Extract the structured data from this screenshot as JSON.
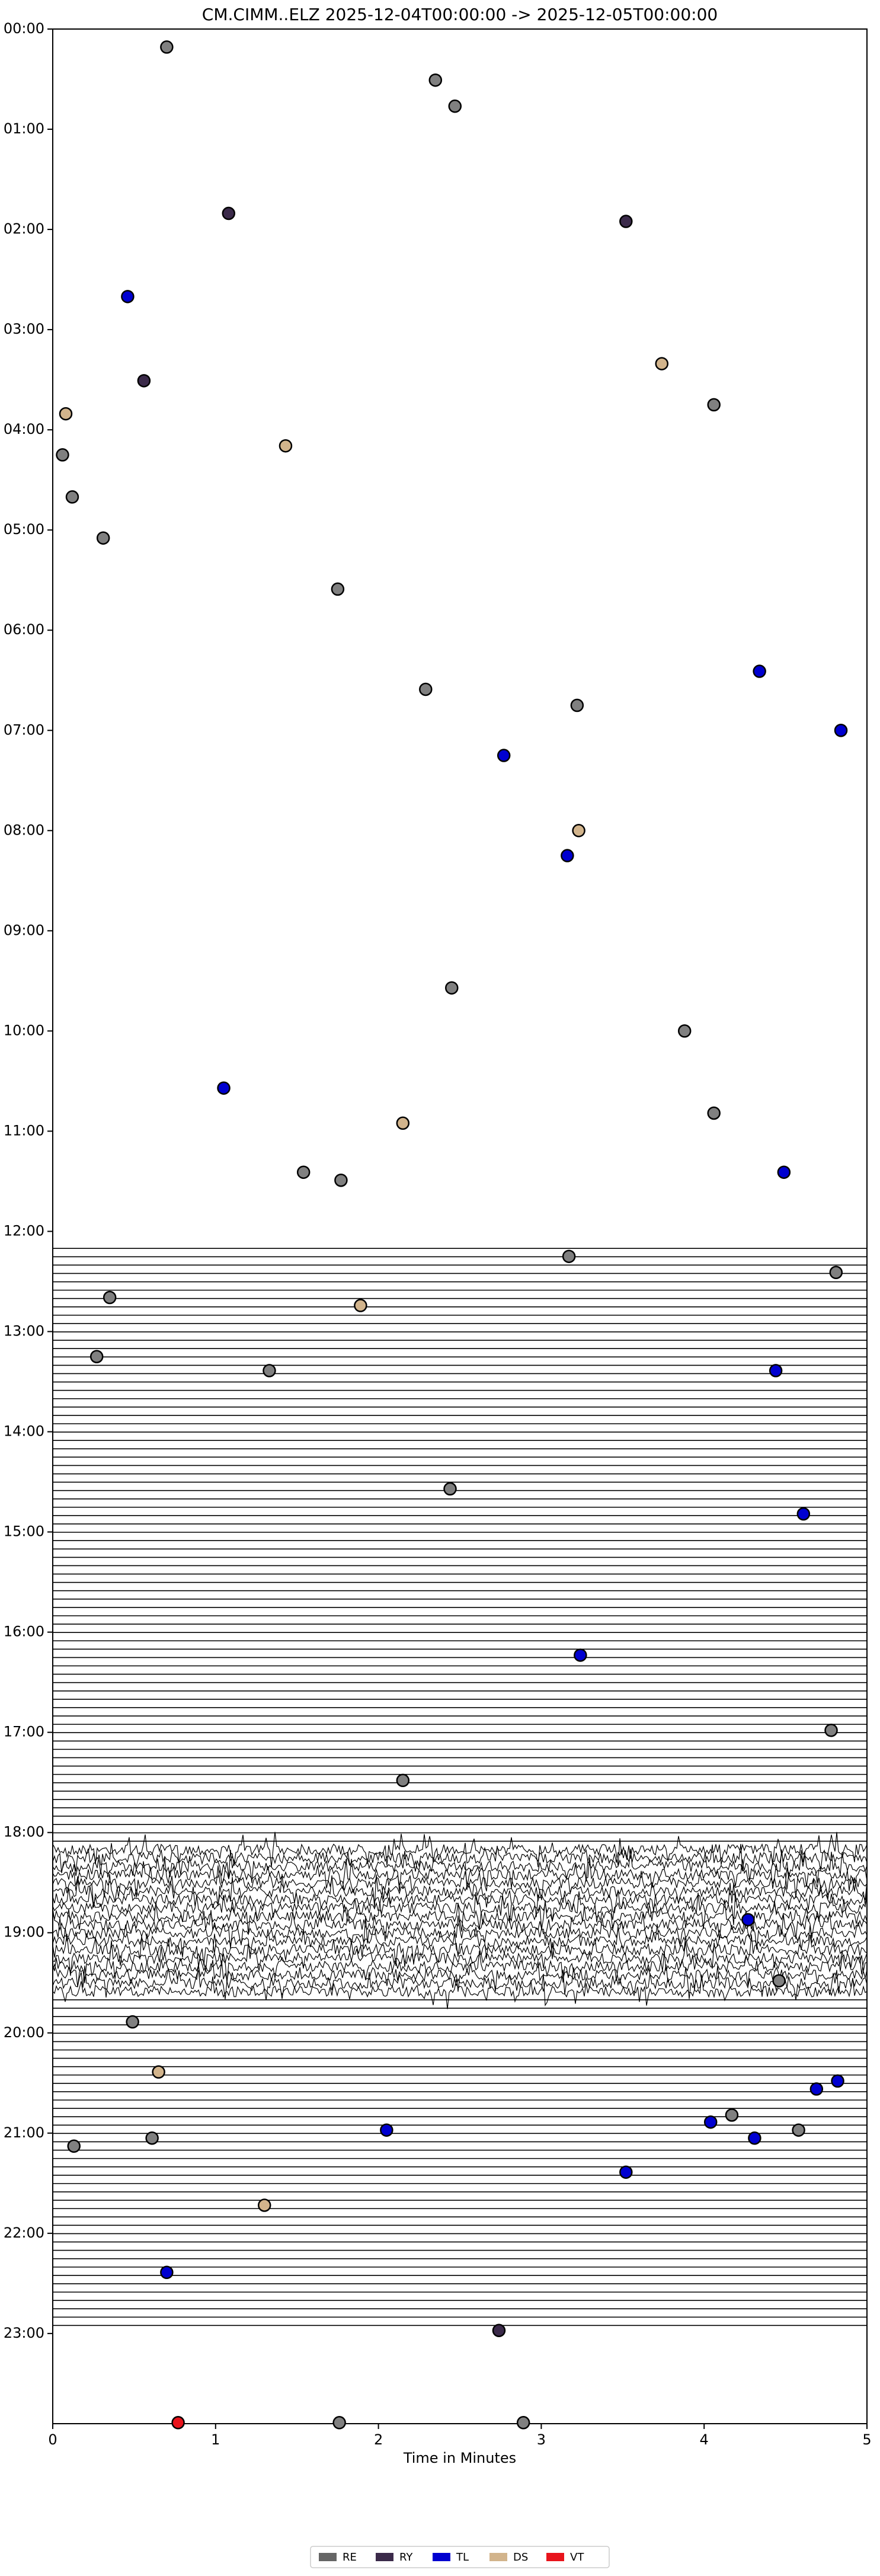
{
  "chart_data": {
    "type": "scatter",
    "title": "CM.CIMM..ELZ  2025-12-04T00:00:00 -> 2025-12-05T00:00:00",
    "x_label": "Time in Minutes",
    "xlim": [
      0,
      5
    ],
    "xticks": [
      0,
      1,
      2,
      3,
      4,
      5
    ],
    "ylim": [
      0,
      23.9
    ],
    "y_inverted": true,
    "yticks": [
      {
        "value": 0,
        "label": "00:00"
      },
      {
        "value": 1,
        "label": "01:00"
      },
      {
        "value": 2,
        "label": "02:00"
      },
      {
        "value": 3,
        "label": "03:00"
      },
      {
        "value": 4,
        "label": "04:00"
      },
      {
        "value": 5,
        "label": "05:00"
      },
      {
        "value": 6,
        "label": "06:00"
      },
      {
        "value": 7,
        "label": "07:00"
      },
      {
        "value": 8,
        "label": "08:00"
      },
      {
        "value": 9,
        "label": "09:00"
      },
      {
        "value": 10,
        "label": "10:00"
      },
      {
        "value": 11,
        "label": "11:00"
      },
      {
        "value": 12,
        "label": "12:00"
      },
      {
        "value": 13,
        "label": "13:00"
      },
      {
        "value": 14,
        "label": "14:00"
      },
      {
        "value": 15,
        "label": "15:00"
      },
      {
        "value": 16,
        "label": "16:00"
      },
      {
        "value": 17,
        "label": "17:00"
      },
      {
        "value": 18,
        "label": "18:00"
      },
      {
        "value": 19,
        "label": "19:00"
      },
      {
        "value": 20,
        "label": "20:00"
      },
      {
        "value": 21,
        "label": "21:00"
      },
      {
        "value": 22,
        "label": "22:00"
      },
      {
        "value": 23,
        "label": "23:00"
      }
    ],
    "legend_position": "bottom",
    "series": [
      {
        "name": "RE",
        "color": "#808080",
        "x": [
          0.7,
          2.35,
          2.47,
          4.06,
          0.06,
          0.12,
          0.31,
          1.75,
          2.29,
          3.22,
          2.45,
          3.88,
          4.06,
          1.54,
          1.77,
          3.17,
          4.81,
          0.35,
          0.27,
          1.33,
          2.44,
          4.78,
          2.15,
          4.46,
          0.49,
          4.17,
          0.61,
          4.58,
          0.13,
          1.76,
          2.89
        ],
        "values": [
          0.18,
          0.51,
          0.77,
          3.75,
          4.25,
          4.67,
          5.08,
          5.59,
          6.59,
          6.75,
          9.57,
          10.0,
          10.82,
          11.41,
          11.49,
          12.25,
          12.41,
          12.66,
          13.25,
          13.39,
          14.57,
          16.98,
          17.48,
          19.48,
          19.89,
          20.82,
          21.05,
          20.97,
          21.13,
          23.89,
          23.89
        ]
      },
      {
        "name": "RY",
        "color": "#3b2a4a",
        "x": [
          1.08,
          3.52,
          0.56,
          2.74
        ],
        "values": [
          1.84,
          1.92,
          3.51,
          22.97
        ]
      },
      {
        "name": "TL",
        "color": "#0000d0",
        "x": [
          0.46,
          4.34,
          4.84,
          2.77,
          3.16,
          1.05,
          4.49,
          4.44,
          4.61,
          3.24,
          4.27,
          4.82,
          4.69,
          4.04,
          4.31,
          2.05,
          3.52,
          0.7
        ],
        "values": [
          2.67,
          6.41,
          7.0,
          7.25,
          8.25,
          10.57,
          11.41,
          13.39,
          14.82,
          16.23,
          18.87,
          20.48,
          20.56,
          20.89,
          21.05,
          20.97,
          21.39,
          22.39
        ]
      },
      {
        "name": "DS",
        "color": "#d2b48c",
        "x": [
          0.08,
          1.43,
          3.74,
          3.23,
          2.15,
          1.89,
          0.65,
          1.3
        ],
        "values": [
          3.84,
          4.16,
          3.34,
          8.0,
          10.92,
          12.74,
          20.39,
          21.72
        ]
      },
      {
        "name": "VT",
        "color": "#e8141c",
        "x": [
          0.77
        ],
        "values": [
          23.89
        ]
      }
    ]
  }
}
